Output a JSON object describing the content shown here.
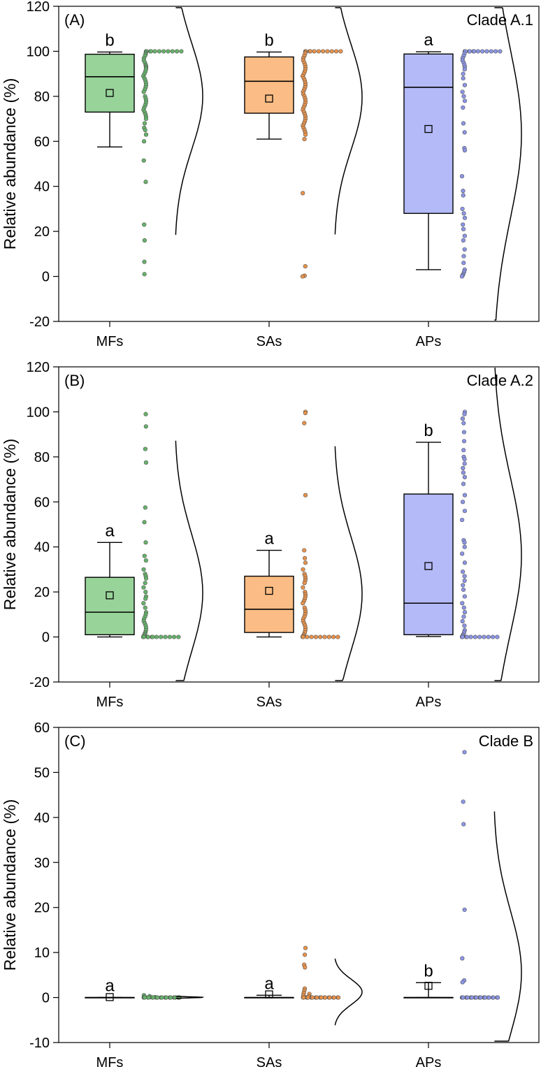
{
  "chart_data": [
    {
      "type": "box",
      "panel_label": "(A)",
      "title": "Clade A.1",
      "ylabel": "Relative abundance (%)",
      "ylim": [
        -20,
        120
      ],
      "yticks": [
        -20,
        0,
        20,
        40,
        60,
        80,
        100,
        120
      ],
      "categories": [
        "MFs",
        "SAs",
        "APs"
      ],
      "series": [
        {
          "category": "MFs",
          "color": "#98d39a",
          "dot_color": "#66b26a",
          "letter": "b",
          "whisker_low": 57.5,
          "q1": 73,
          "median": 88.7,
          "q3": 98.7,
          "whisker_high": 99.7,
          "mean": 81.5,
          "points": [
            100,
            100,
            100,
            100,
            100,
            100,
            100,
            100,
            100,
            100,
            100,
            99.5,
            99,
            98.5,
            98,
            97,
            96,
            95,
            94,
            93.5,
            93,
            92.5,
            92,
            91,
            90,
            89,
            88,
            87,
            86,
            85,
            84,
            83,
            82,
            80,
            79,
            78,
            77,
            76,
            75,
            74,
            73,
            72,
            71,
            70,
            68,
            66,
            65,
            63,
            60,
            51.5,
            42,
            23,
            16,
            6.5,
            1
          ]
        },
        {
          "category": "SAs",
          "color": "#fbbd85",
          "dot_color": "#e8924a",
          "letter": "b",
          "whisker_low": 61,
          "q1": 72.5,
          "median": 86.7,
          "q3": 97.5,
          "whisker_high": 99.7,
          "mean": 79,
          "points": [
            100,
            100,
            100,
            100,
            100,
            100,
            100,
            100,
            100,
            100,
            100,
            99.5,
            99,
            98,
            97,
            96,
            95,
            94,
            93,
            92,
            91,
            90,
            89,
            88,
            87,
            86,
            85,
            84,
            83,
            82,
            81,
            80,
            79,
            78,
            77,
            76,
            75,
            74,
            73,
            72,
            71,
            70,
            69,
            68,
            67,
            66,
            65,
            64,
            63,
            61,
            37,
            4.5,
            0.3,
            0
          ]
        },
        {
          "category": "APs",
          "color": "#b4baf7",
          "dot_color": "#8b95e6",
          "letter": "a",
          "whisker_low": 3,
          "q1": 28,
          "median": 84,
          "q3": 98.8,
          "whisker_high": 99.8,
          "mean": 65.5,
          "points": [
            100,
            100,
            100,
            100,
            100,
            100,
            100,
            100,
            100,
            100,
            100,
            100,
            99,
            98,
            97,
            96,
            95,
            94,
            93,
            92,
            90,
            88,
            85,
            82,
            80,
            78,
            75,
            68,
            64,
            57,
            56,
            44.5,
            38,
            36,
            30,
            28,
            26,
            23,
            21,
            18,
            16,
            12,
            9,
            6,
            3,
            2,
            1,
            0.5,
            0
          ]
        }
      ]
    },
    {
      "type": "box",
      "panel_label": "(B)",
      "title": "Clade A.2",
      "ylabel": "Relative abundance (%)",
      "ylim": [
        -20,
        120
      ],
      "yticks": [
        -20,
        0,
        20,
        40,
        60,
        80,
        100,
        120
      ],
      "categories": [
        "MFs",
        "SAs",
        "APs"
      ],
      "series": [
        {
          "category": "MFs",
          "color": "#98d39a",
          "dot_color": "#66b26a",
          "letter": "a",
          "whisker_low": 0,
          "q1": 1,
          "median": 11,
          "q3": 26.5,
          "whisker_high": 42,
          "mean": 18.5,
          "points": [
            99,
            93.5,
            83.5,
            77.5,
            57.5,
            51,
            42,
            36,
            34,
            30,
            28,
            27,
            26,
            24,
            22,
            20,
            18,
            17,
            15,
            13,
            11,
            10,
            9,
            8,
            7,
            6,
            5,
            4,
            3,
            2,
            1.5,
            1,
            0.5,
            0,
            0,
            0,
            0,
            0,
            0,
            0,
            0,
            0,
            0,
            0,
            0
          ]
        },
        {
          "category": "SAs",
          "color": "#fbbd85",
          "dot_color": "#e8924a",
          "letter": "a",
          "whisker_low": 0,
          "q1": 2,
          "median": 12.3,
          "q3": 27,
          "whisker_high": 38.5,
          "mean": 20.5,
          "points": [
            100,
            99.5,
            95,
            63,
            38.5,
            35,
            33,
            30,
            28,
            27,
            26,
            25,
            24,
            22,
            20,
            19,
            18,
            17,
            16,
            15,
            13,
            12,
            11,
            10,
            9,
            8,
            7,
            6,
            5,
            4,
            3,
            2,
            1,
            0.5,
            0,
            0,
            0,
            0,
            0,
            0,
            0,
            0,
            0,
            0
          ]
        },
        {
          "category": "APs",
          "color": "#b4baf7",
          "dot_color": "#8b95e6",
          "letter": "b",
          "whisker_low": 0.2,
          "q1": 1,
          "median": 15,
          "q3": 63.5,
          "whisker_high": 86.5,
          "mean": 31.5,
          "points": [
            100,
            99,
            97,
            95,
            91,
            87,
            83,
            80,
            79,
            77,
            75,
            73,
            71,
            68,
            63,
            60,
            56,
            52,
            43,
            42,
            40,
            37,
            33,
            29,
            27,
            25,
            23,
            21,
            18,
            15,
            13,
            11,
            9,
            7,
            5,
            3,
            2,
            1,
            0.5,
            0,
            0,
            0,
            0,
            0,
            0,
            0,
            0,
            0,
            0,
            0
          ]
        }
      ]
    },
    {
      "type": "box",
      "panel_label": "(C)",
      "title": "Clade B",
      "ylabel": "Relative abundance (%)",
      "ylim": [
        -10,
        60
      ],
      "yticks": [
        -10,
        0,
        10,
        20,
        30,
        40,
        50,
        60
      ],
      "categories": [
        "MFs",
        "SAs",
        "APs"
      ],
      "series": [
        {
          "category": "MFs",
          "color": "#98d39a",
          "dot_color": "#66b26a",
          "letter": "a",
          "whisker_low": 0,
          "q1": 0,
          "median": 0,
          "q3": 0,
          "whisker_high": 0,
          "mean": 0.1,
          "points": [
            0.5,
            0.3,
            0.2,
            0.1,
            0.1,
            0,
            0,
            0,
            0,
            0,
            0,
            0,
            0,
            0,
            0,
            0,
            0,
            0,
            0,
            0,
            0,
            0,
            0,
            0,
            0,
            0,
            0,
            0,
            0,
            0
          ]
        },
        {
          "category": "SAs",
          "color": "#fbbd85",
          "dot_color": "#e8924a",
          "letter": "a",
          "whisker_low": 0,
          "q1": 0,
          "median": 0,
          "q3": 0,
          "whisker_high": 0.5,
          "mean": 0.7,
          "points": [
            11,
            9.5,
            7.3,
            6.7,
            2,
            1.5,
            1,
            0.8,
            0.5,
            0.3,
            0.1,
            0,
            0,
            0,
            0,
            0,
            0,
            0,
            0,
            0,
            0,
            0,
            0,
            0,
            0,
            0,
            0,
            0,
            0,
            0,
            0,
            0,
            0
          ]
        },
        {
          "category": "APs",
          "color": "#b4baf7",
          "dot_color": "#8b95e6",
          "letter": "b",
          "whisker_low": 0,
          "q1": 0,
          "median": 0,
          "q3": 0,
          "whisker_high": 3.3,
          "mean": 2.6,
          "points": [
            54.5,
            43.5,
            38.5,
            19.5,
            8.7,
            3.8,
            3.4,
            0,
            0,
            0,
            0,
            0,
            0,
            0,
            0,
            0,
            0,
            0,
            0,
            0,
            0,
            0,
            0,
            0,
            0,
            0,
            0,
            0,
            0,
            0,
            0
          ]
        }
      ]
    }
  ]
}
